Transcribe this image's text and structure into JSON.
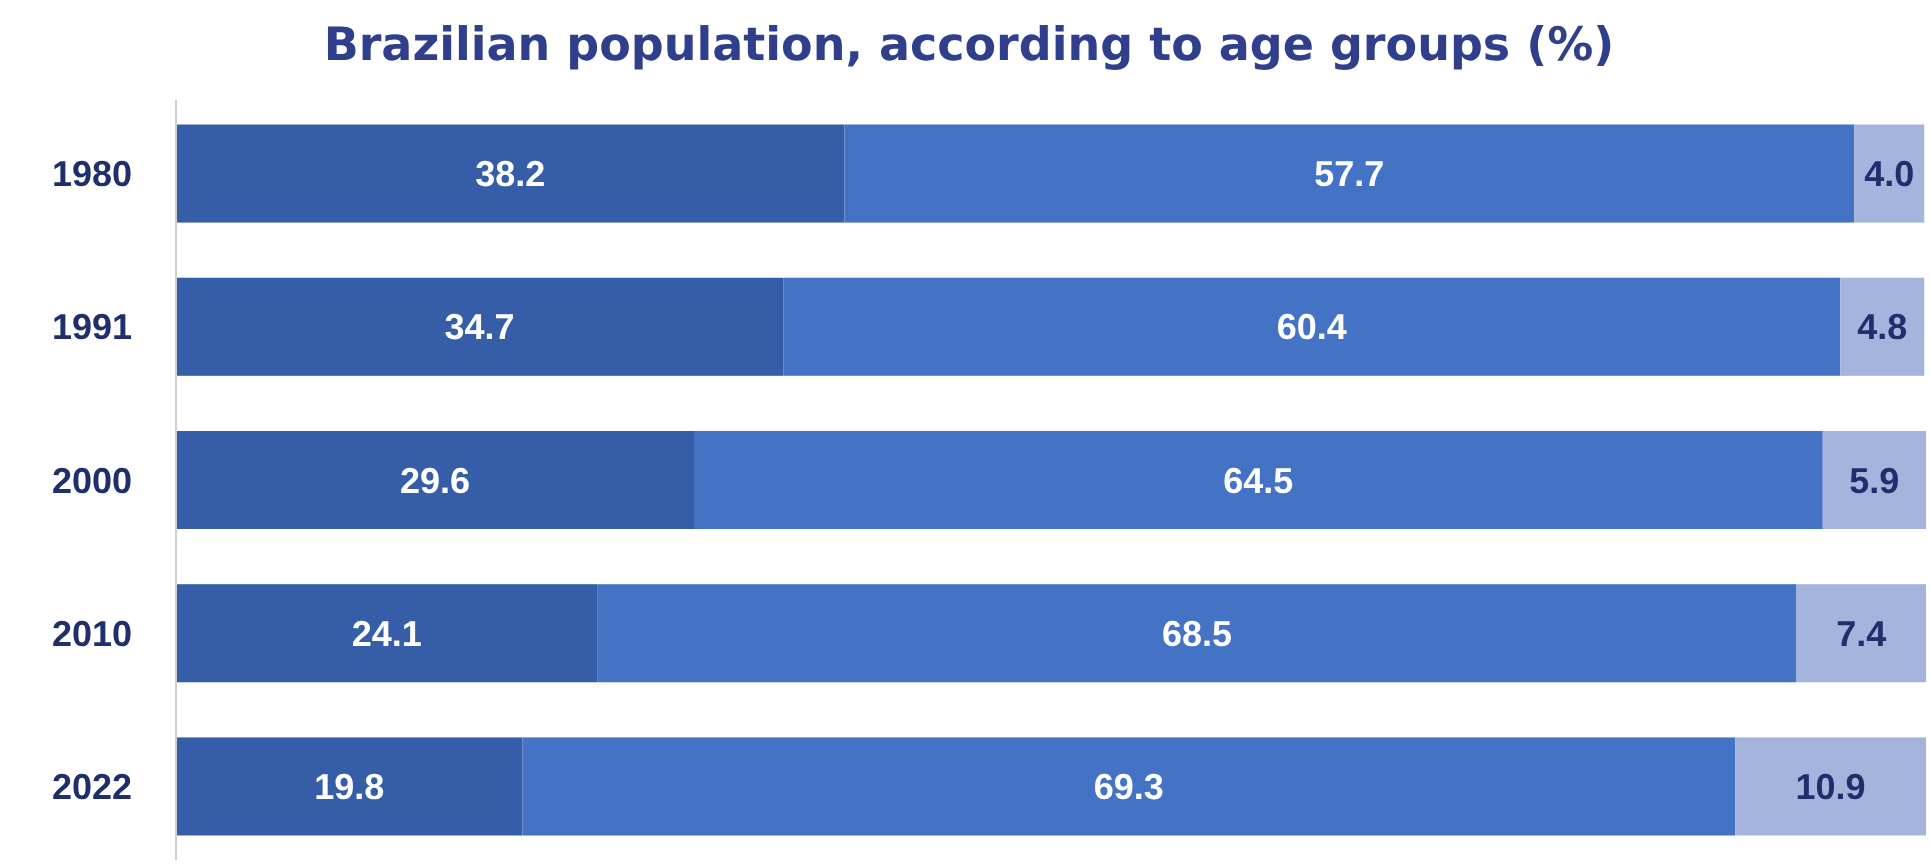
{
  "chart_data": {
    "type": "bar",
    "title": "Brazilian population, according to age groups (%)",
    "orientation": "horizontal",
    "stacked": true,
    "tick_labels": "y",
    "xlim": [
      0,
      100
    ],
    "categories": [
      "1980",
      "1991",
      "2000",
      "2010",
      "2022"
    ],
    "series": [
      {
        "color": "#365ea8",
        "values": [
          38.2,
          34.7,
          29.6,
          24.1,
          19.8
        ],
        "value_labels": [
          "38.2",
          "34.7",
          "29.6",
          "24.1",
          "19.8"
        ]
      },
      {
        "color": "#4472c4",
        "values": [
          57.7,
          60.4,
          64.5,
          68.5,
          69.3
        ],
        "value_labels": [
          "57.7",
          "60.4",
          "64.5",
          "68.5",
          "69.3"
        ]
      },
      {
        "color": "#a5b4dc",
        "values": [
          4.0,
          4.8,
          5.9,
          7.4,
          10.9
        ],
        "value_labels": [
          "4.0",
          "4.8",
          "5.9",
          "7.4",
          "10.9"
        ]
      }
    ]
  }
}
